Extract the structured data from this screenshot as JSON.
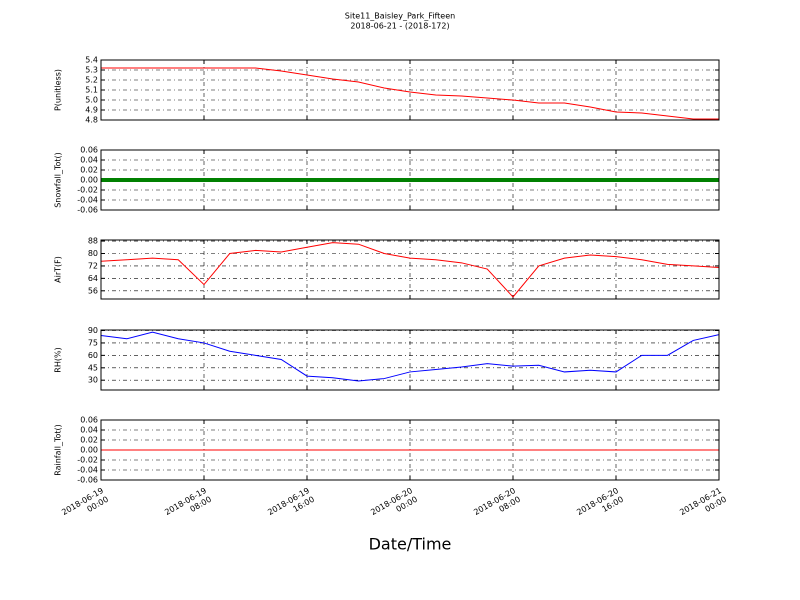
{
  "chart_data": [
    {
      "type": "line",
      "title": "Site11_Baisley_Park_Fifteen",
      "subtitle": "2018-06-21 - (2018-172)",
      "ylabel": "P(unitless)",
      "x": [
        "2018-06-19 00:00",
        "2018-06-19 02:00",
        "2018-06-19 04:00",
        "2018-06-19 06:00",
        "2018-06-19 08:00",
        "2018-06-19 10:00",
        "2018-06-19 12:00",
        "2018-06-19 14:00",
        "2018-06-19 16:00",
        "2018-06-19 18:00",
        "2018-06-19 20:00",
        "2018-06-19 22:00",
        "2018-06-20 00:00",
        "2018-06-20 02:00",
        "2018-06-20 04:00",
        "2018-06-20 06:00",
        "2018-06-20 08:00",
        "2018-06-20 10:00",
        "2018-06-20 12:00",
        "2018-06-20 14:00",
        "2018-06-20 16:00",
        "2018-06-20 18:00",
        "2018-06-20 20:00",
        "2018-06-20 22:00",
        "2018-06-21 00:00"
      ],
      "series": [
        {
          "name": "P",
          "color": "#ff0000",
          "values": [
            5.32,
            5.32,
            5.32,
            5.32,
            5.32,
            5.32,
            5.32,
            5.29,
            5.25,
            5.21,
            5.18,
            5.12,
            5.08,
            5.05,
            5.04,
            5.02,
            5.0,
            4.97,
            4.97,
            4.93,
            4.88,
            4.87,
            4.84,
            4.81,
            4.81
          ]
        }
      ],
      "ylim": [
        4.8,
        5.4
      ],
      "yticks": [
        4.8,
        4.9,
        {
          "value": 5,
          "label": "5.0"
        },
        5.1,
        5.2,
        5.3,
        5.4
      ],
      "grid": true
    },
    {
      "type": "line",
      "ylabel": "Snowfall_Tot()",
      "x": [
        "2018-06-19 00:00",
        "2018-06-19 02:00",
        "2018-06-19 04:00",
        "2018-06-19 06:00",
        "2018-06-19 08:00",
        "2018-06-19 10:00",
        "2018-06-19 12:00",
        "2018-06-19 14:00",
        "2018-06-19 16:00",
        "2018-06-19 18:00",
        "2018-06-19 20:00",
        "2018-06-19 22:00",
        "2018-06-20 00:00",
        "2018-06-20 02:00",
        "2018-06-20 04:00",
        "2018-06-20 06:00",
        "2018-06-20 08:00",
        "2018-06-20 10:00",
        "2018-06-20 12:00",
        "2018-06-20 14:00",
        "2018-06-20 16:00",
        "2018-06-20 18:00",
        "2018-06-20 20:00",
        "2018-06-20 22:00",
        "2018-06-21 00:00"
      ],
      "series": [
        {
          "name": "Snowfall",
          "color": "#008000",
          "values": [
            0,
            0,
            0,
            0,
            0,
            0,
            0,
            0,
            0,
            0,
            0,
            0,
            0,
            0,
            0,
            0,
            0,
            0,
            0,
            0,
            0,
            0,
            0,
            0,
            0
          ]
        }
      ],
      "ylim": [
        -0.06,
        0.06
      ],
      "yticks": [
        -0.06,
        -0.04,
        -0.02,
        {
          "value": 0,
          "label": "0.00"
        },
        0.02,
        0.04,
        0.06
      ],
      "grid": true
    },
    {
      "type": "line",
      "ylabel": "AirT(F)",
      "x": [
        "2018-06-19 00:00",
        "2018-06-19 02:00",
        "2018-06-19 04:00",
        "2018-06-19 06:00",
        "2018-06-19 08:00",
        "2018-06-19 10:00",
        "2018-06-19 12:00",
        "2018-06-19 14:00",
        "2018-06-19 16:00",
        "2018-06-19 18:00",
        "2018-06-19 20:00",
        "2018-06-19 22:00",
        "2018-06-20 00:00",
        "2018-06-20 02:00",
        "2018-06-20 04:00",
        "2018-06-20 06:00",
        "2018-06-20 08:00",
        "2018-06-20 10:00",
        "2018-06-20 12:00",
        "2018-06-20 14:00",
        "2018-06-20 16:00",
        "2018-06-20 18:00",
        "2018-06-20 20:00",
        "2018-06-20 22:00",
        "2018-06-21 00:00"
      ],
      "series": [
        {
          "name": "AirT",
          "color": "#ff0000",
          "values": [
            75,
            76,
            77,
            76,
            60,
            80,
            82,
            81,
            84,
            87,
            86,
            80,
            77,
            76,
            74,
            70,
            52,
            72,
            77,
            79,
            78,
            76,
            73,
            72,
            71
          ]
        }
      ],
      "ylim": [
        50.7,
        88.7
      ],
      "yticks": [
        56,
        64,
        72,
        80,
        88
      ],
      "grid": true
    },
    {
      "type": "line",
      "ylabel": "RH(%)",
      "x": [
        "2018-06-19 00:00",
        "2018-06-19 02:00",
        "2018-06-19 04:00",
        "2018-06-19 06:00",
        "2018-06-19 08:00",
        "2018-06-19 10:00",
        "2018-06-19 12:00",
        "2018-06-19 14:00",
        "2018-06-19 16:00",
        "2018-06-19 18:00",
        "2018-06-19 20:00",
        "2018-06-19 22:00",
        "2018-06-20 00:00",
        "2018-06-20 02:00",
        "2018-06-20 04:00",
        "2018-06-20 06:00",
        "2018-06-20 08:00",
        "2018-06-20 10:00",
        "2018-06-20 12:00",
        "2018-06-20 14:00",
        "2018-06-20 16:00",
        "2018-06-20 18:00",
        "2018-06-20 20:00",
        "2018-06-20 22:00",
        "2018-06-21 00:00"
      ],
      "series": [
        {
          "name": "RH",
          "color": "#0000ff",
          "values": [
            84,
            80,
            88,
            80,
            75,
            65,
            60,
            55,
            35,
            33,
            29,
            32,
            40,
            43,
            46,
            50,
            47,
            48,
            40,
            42,
            40,
            60,
            60,
            78,
            85
          ]
        }
      ],
      "ylim": [
        18.2,
        90.6
      ],
      "yticks": [
        30,
        45,
        60,
        75,
        90
      ],
      "grid": true
    },
    {
      "type": "line",
      "ylabel": "Rainfall_Tot()",
      "xlabel": "Date/Time",
      "x": [
        "2018-06-19 00:00",
        "2018-06-19 02:00",
        "2018-06-19 04:00",
        "2018-06-19 06:00",
        "2018-06-19 08:00",
        "2018-06-19 10:00",
        "2018-06-19 12:00",
        "2018-06-19 14:00",
        "2018-06-19 16:00",
        "2018-06-19 18:00",
        "2018-06-19 20:00",
        "2018-06-19 22:00",
        "2018-06-20 00:00",
        "2018-06-20 02:00",
        "2018-06-20 04:00",
        "2018-06-20 06:00",
        "2018-06-20 08:00",
        "2018-06-20 10:00",
        "2018-06-20 12:00",
        "2018-06-20 14:00",
        "2018-06-20 16:00",
        "2018-06-20 18:00",
        "2018-06-20 20:00",
        "2018-06-20 22:00",
        "2018-06-21 00:00"
      ],
      "series": [
        {
          "name": "Rainfall",
          "color": "#ff0000",
          "values": [
            0,
            0,
            0,
            0,
            0,
            0,
            0,
            0,
            0,
            0,
            0,
            0,
            0,
            0,
            0,
            0,
            0,
            0,
            0,
            0,
            0,
            0,
            0,
            0,
            0
          ]
        }
      ],
      "ylim": [
        -0.06,
        0.06
      ],
      "yticks": [
        -0.06,
        -0.04,
        -0.02,
        {
          "value": 0,
          "label": "0.00"
        },
        0.02,
        0.04,
        0.06
      ],
      "grid": true,
      "xlim": [
        "2018-06-19 00:00",
        "2018-06-21 00:00"
      ],
      "xticks": [
        {
          "value": "2018-06-19 00:00",
          "label": "2018-06-19\n00:00"
        },
        {
          "value": "2018-06-19 08:00",
          "label": "2018-06-19\n08:00"
        },
        {
          "value": "2018-06-19 16:00",
          "label": "2018-06-19\n16:00"
        },
        {
          "value": "2018-06-20 00:00",
          "label": "2018-06-20\n00:00"
        },
        {
          "value": "2018-06-20 08:00",
          "label": "2018-06-20\n08:00"
        },
        {
          "value": "2018-06-20 16:00",
          "label": "2018-06-20\n16:00"
        },
        {
          "value": "2018-06-21 00:00",
          "label": "2018-06-21\n00:00"
        }
      ]
    }
  ]
}
